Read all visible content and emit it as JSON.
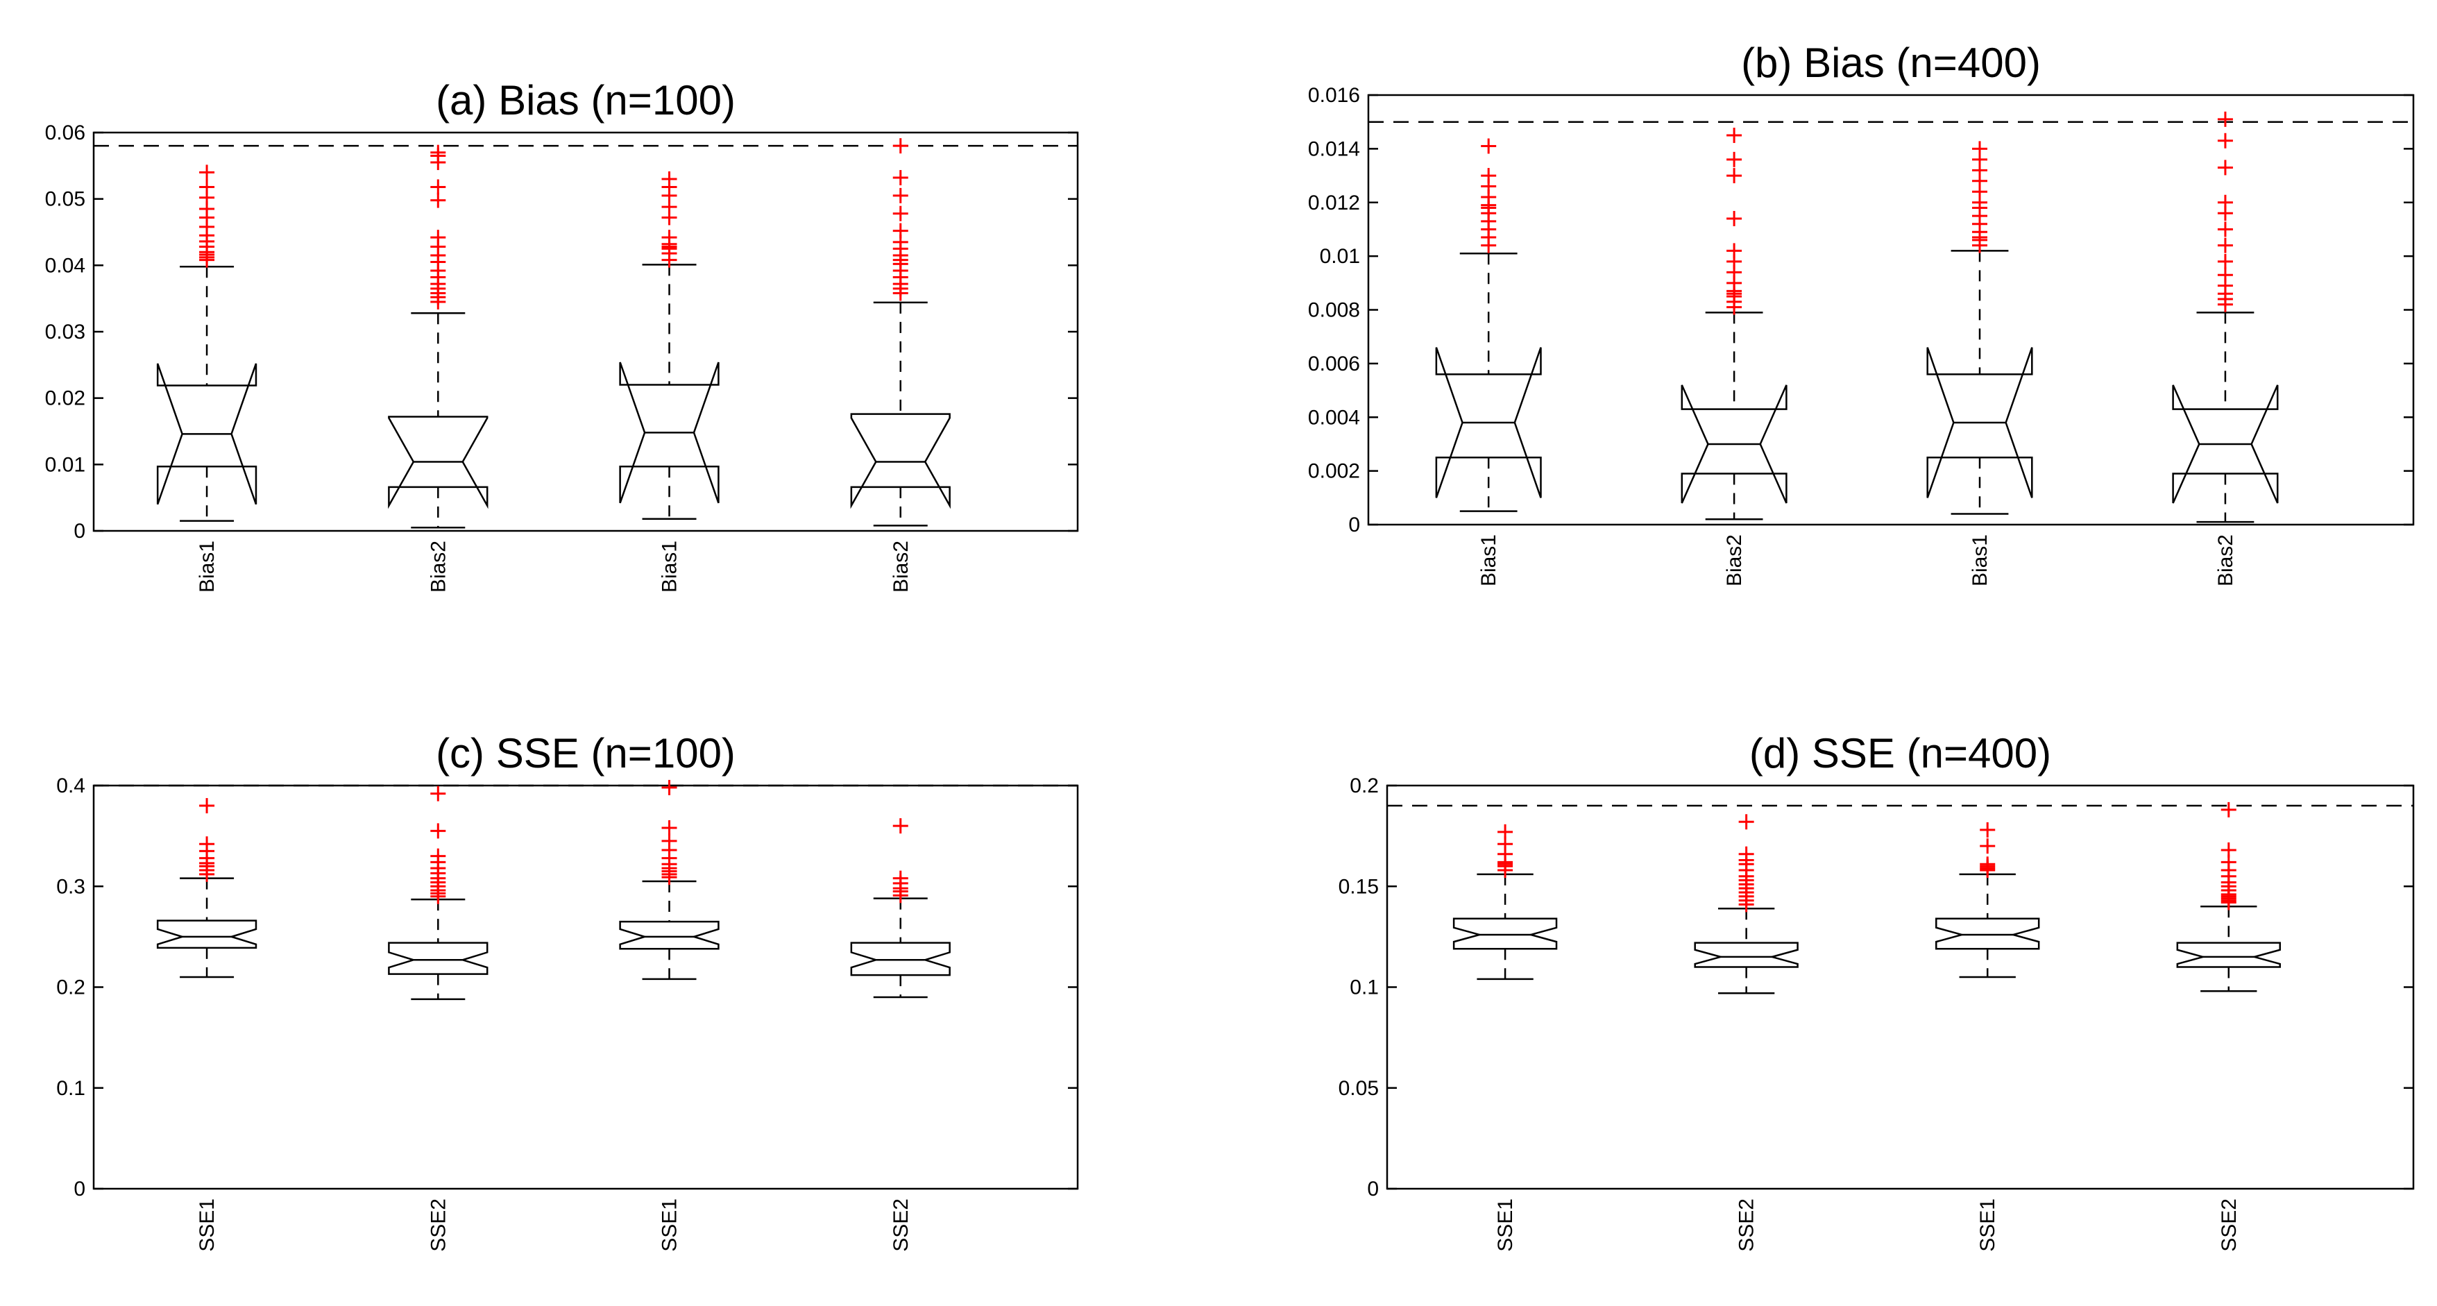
{
  "chart_data": [
    {
      "type": "boxplot",
      "title": "(a) Bias (n=100)",
      "xlabel": "",
      "ylabel": "",
      "ylim": [
        0,
        0.06
      ],
      "yticks": [
        "0",
        "0.01",
        "0.02",
        "0.03",
        "0.04",
        "0.05",
        "0.06"
      ],
      "reference_line": 0.058,
      "categories": [
        "Bias1",
        "Bias2",
        "Bias1",
        "Bias2"
      ],
      "boxes": [
        {
          "whisker_low": 0.0015,
          "q1": 0.0097,
          "median": 0.0146,
          "q3": 0.0219,
          "whisker_high": 0.0398,
          "notch": 0.0106,
          "outliers": [
            0.0408,
            0.0412,
            0.0416,
            0.042,
            0.0428,
            0.0436,
            0.0445,
            0.0458,
            0.0472,
            0.0485,
            0.0502,
            0.0518,
            0.054
          ]
        },
        {
          "whisker_low": 0.0005,
          "q1": 0.0066,
          "median": 0.0104,
          "q3": 0.0172,
          "whisker_high": 0.0328,
          "notch": 0.0066,
          "outliers": [
            0.0345,
            0.0352,
            0.0358,
            0.0365,
            0.0372,
            0.0382,
            0.0392,
            0.0405,
            0.0415,
            0.0428,
            0.0442,
            0.0498,
            0.0518,
            0.0555,
            0.0565,
            0.057
          ]
        },
        {
          "whisker_low": 0.0018,
          "q1": 0.0097,
          "median": 0.0148,
          "q3": 0.022,
          "whisker_high": 0.0401,
          "notch": 0.0106,
          "outliers": [
            0.0408,
            0.0418,
            0.0425,
            0.0428,
            0.0432,
            0.0442,
            0.0472,
            0.0488,
            0.0505,
            0.0518,
            0.053
          ]
        },
        {
          "whisker_low": 0.0008,
          "q1": 0.0066,
          "median": 0.0104,
          "q3": 0.0176,
          "whisker_high": 0.0344,
          "notch": 0.0066,
          "outliers": [
            0.0358,
            0.0365,
            0.0372,
            0.0382,
            0.0392,
            0.0402,
            0.0408,
            0.0415,
            0.0425,
            0.0435,
            0.0452,
            0.0478,
            0.0505,
            0.0532,
            0.058
          ]
        }
      ]
    },
    {
      "type": "boxplot",
      "title": "(b) Bias (n=400)",
      "xlabel": "",
      "ylabel": "",
      "ylim": [
        0,
        0.016
      ],
      "yticks": [
        "0",
        "0.002",
        "0.004",
        "0.006",
        "0.008",
        "0.01",
        "0.012",
        "0.014",
        "0.016"
      ],
      "reference_line": 0.015,
      "categories": [
        "Bias1",
        "Bias2",
        "Bias1",
        "Bias2"
      ],
      "boxes": [
        {
          "whisker_low": 0.0005,
          "q1": 0.0025,
          "median": 0.0038,
          "q3": 0.0056,
          "whisker_high": 0.0101,
          "notch": 0.0028,
          "outliers": [
            0.0104,
            0.0107,
            0.011,
            0.0113,
            0.0116,
            0.0118,
            0.0119,
            0.0122,
            0.0126,
            0.013,
            0.0141
          ]
        },
        {
          "whisker_low": 0.0002,
          "q1": 0.0019,
          "median": 0.003,
          "q3": 0.0043,
          "whisker_high": 0.0079,
          "notch": 0.0022,
          "outliers": [
            0.0081,
            0.0083,
            0.0085,
            0.0086,
            0.0087,
            0.009,
            0.0094,
            0.0098,
            0.0102,
            0.0114,
            0.013,
            0.0136,
            0.0145
          ]
        },
        {
          "whisker_low": 0.0004,
          "q1": 0.0025,
          "median": 0.0038,
          "q3": 0.0056,
          "whisker_high": 0.0102,
          "notch": 0.0028,
          "outliers": [
            0.0104,
            0.0106,
            0.0107,
            0.0109,
            0.0112,
            0.0115,
            0.0118,
            0.012,
            0.0124,
            0.0128,
            0.0132,
            0.0136,
            0.014
          ]
        },
        {
          "whisker_low": 0.0001,
          "q1": 0.0019,
          "median": 0.003,
          "q3": 0.0043,
          "whisker_high": 0.0079,
          "notch": 0.0022,
          "outliers": [
            0.0082,
            0.0084,
            0.0086,
            0.0089,
            0.0093,
            0.0098,
            0.0104,
            0.011,
            0.0116,
            0.012,
            0.0133,
            0.0143,
            0.0151
          ]
        }
      ]
    },
    {
      "type": "boxplot",
      "title": "(c) SSE (n=100)",
      "xlabel": "",
      "ylabel": "",
      "ylim": [
        0,
        0.4
      ],
      "yticks": [
        "0",
        "0.1",
        "0.2",
        "0.3",
        "0.4"
      ],
      "reference_line": 0.4,
      "categories": [
        "SSE1",
        "SSE2",
        "SSE1",
        "SSE2"
      ],
      "boxes": [
        {
          "whisker_low": 0.21,
          "q1": 0.239,
          "median": 0.25,
          "q3": 0.266,
          "whisker_high": 0.308,
          "notch": 0.0075,
          "outliers": [
            0.312,
            0.316,
            0.32,
            0.323,
            0.328,
            0.335,
            0.342,
            0.38
          ]
        },
        {
          "whisker_low": 0.188,
          "q1": 0.213,
          "median": 0.227,
          "q3": 0.244,
          "whisker_high": 0.287,
          "notch": 0.0075,
          "outliers": [
            0.29,
            0.293,
            0.296,
            0.3,
            0.304,
            0.308,
            0.313,
            0.318,
            0.324,
            0.33,
            0.355,
            0.392
          ]
        },
        {
          "whisker_low": 0.208,
          "q1": 0.238,
          "median": 0.25,
          "q3": 0.265,
          "whisker_high": 0.305,
          "notch": 0.0075,
          "outliers": [
            0.309,
            0.312,
            0.315,
            0.318,
            0.322,
            0.328,
            0.336,
            0.345,
            0.358,
            0.398
          ]
        },
        {
          "whisker_low": 0.19,
          "q1": 0.212,
          "median": 0.227,
          "q3": 0.244,
          "whisker_high": 0.288,
          "notch": 0.0075,
          "outliers": [
            0.291,
            0.295,
            0.298,
            0.303,
            0.308,
            0.36
          ]
        }
      ]
    },
    {
      "type": "boxplot",
      "title": "(d) SSE (n=400)",
      "xlabel": "",
      "ylabel": "",
      "ylim": [
        0,
        0.2
      ],
      "yticks": [
        "0",
        "0.05",
        "0.1",
        "0.15",
        "0.2"
      ],
      "reference_line": 0.19,
      "categories": [
        "SSE1",
        "SSE2",
        "SSE1",
        "SSE2"
      ],
      "boxes": [
        {
          "whisker_low": 0.104,
          "q1": 0.119,
          "median": 0.126,
          "q3": 0.134,
          "whisker_high": 0.156,
          "notch": 0.0035,
          "outliers": [
            0.158,
            0.16,
            0.161,
            0.162,
            0.166,
            0.171,
            0.177
          ]
        },
        {
          "whisker_low": 0.097,
          "q1": 0.11,
          "median": 0.115,
          "q3": 0.122,
          "whisker_high": 0.139,
          "notch": 0.0035,
          "outliers": [
            0.141,
            0.143,
            0.145,
            0.147,
            0.149,
            0.151,
            0.153,
            0.155,
            0.158,
            0.161,
            0.163,
            0.166,
            0.182
          ]
        },
        {
          "whisker_low": 0.105,
          "q1": 0.119,
          "median": 0.126,
          "q3": 0.134,
          "whisker_high": 0.156,
          "notch": 0.0035,
          "outliers": [
            0.158,
            0.159,
            0.16,
            0.161,
            0.17,
            0.178
          ]
        },
        {
          "whisker_low": 0.098,
          "q1": 0.11,
          "median": 0.115,
          "q3": 0.122,
          "whisker_high": 0.14,
          "notch": 0.0035,
          "outliers": [
            0.142,
            0.143,
            0.144,
            0.145,
            0.146,
            0.148,
            0.15,
            0.152,
            0.155,
            0.158,
            0.162,
            0.168,
            0.188
          ]
        }
      ]
    }
  ]
}
